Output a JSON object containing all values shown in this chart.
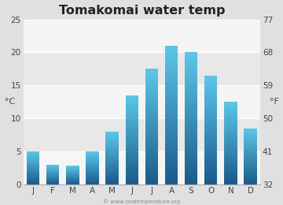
{
  "title": "Tomakomai water temp",
  "months": [
    "J",
    "F",
    "M",
    "A",
    "M",
    "J",
    "J",
    "A",
    "S",
    "O",
    "N",
    "D"
  ],
  "values_c": [
    5.0,
    3.0,
    2.8,
    5.0,
    8.0,
    13.5,
    17.5,
    21.0,
    20.0,
    16.5,
    12.5,
    8.5
  ],
  "ylim_c": [
    0,
    25
  ],
  "yticks_c": [
    0,
    5,
    10,
    15,
    "20",
    25
  ],
  "ytick_vals_c": [
    0,
    5,
    10,
    15,
    20,
    25
  ],
  "ylim_f": [
    32,
    77
  ],
  "ytick_vals_f": [
    32,
    41,
    50,
    59,
    68,
    77
  ],
  "ylabel_left": "°C",
  "ylabel_right": "°F",
  "bar_color_top": "#5cc8e8",
  "bar_color_bottom": "#1a5a8a",
  "bg_color": "#e0e0e0",
  "plot_bg_light": "#f5f5f5",
  "plot_bg_dark": "#e8e8e8",
  "watermark": "© www.seatemperature.org",
  "title_fontsize": 11.5,
  "tick_fontsize": 7.5,
  "label_fontsize": 8
}
